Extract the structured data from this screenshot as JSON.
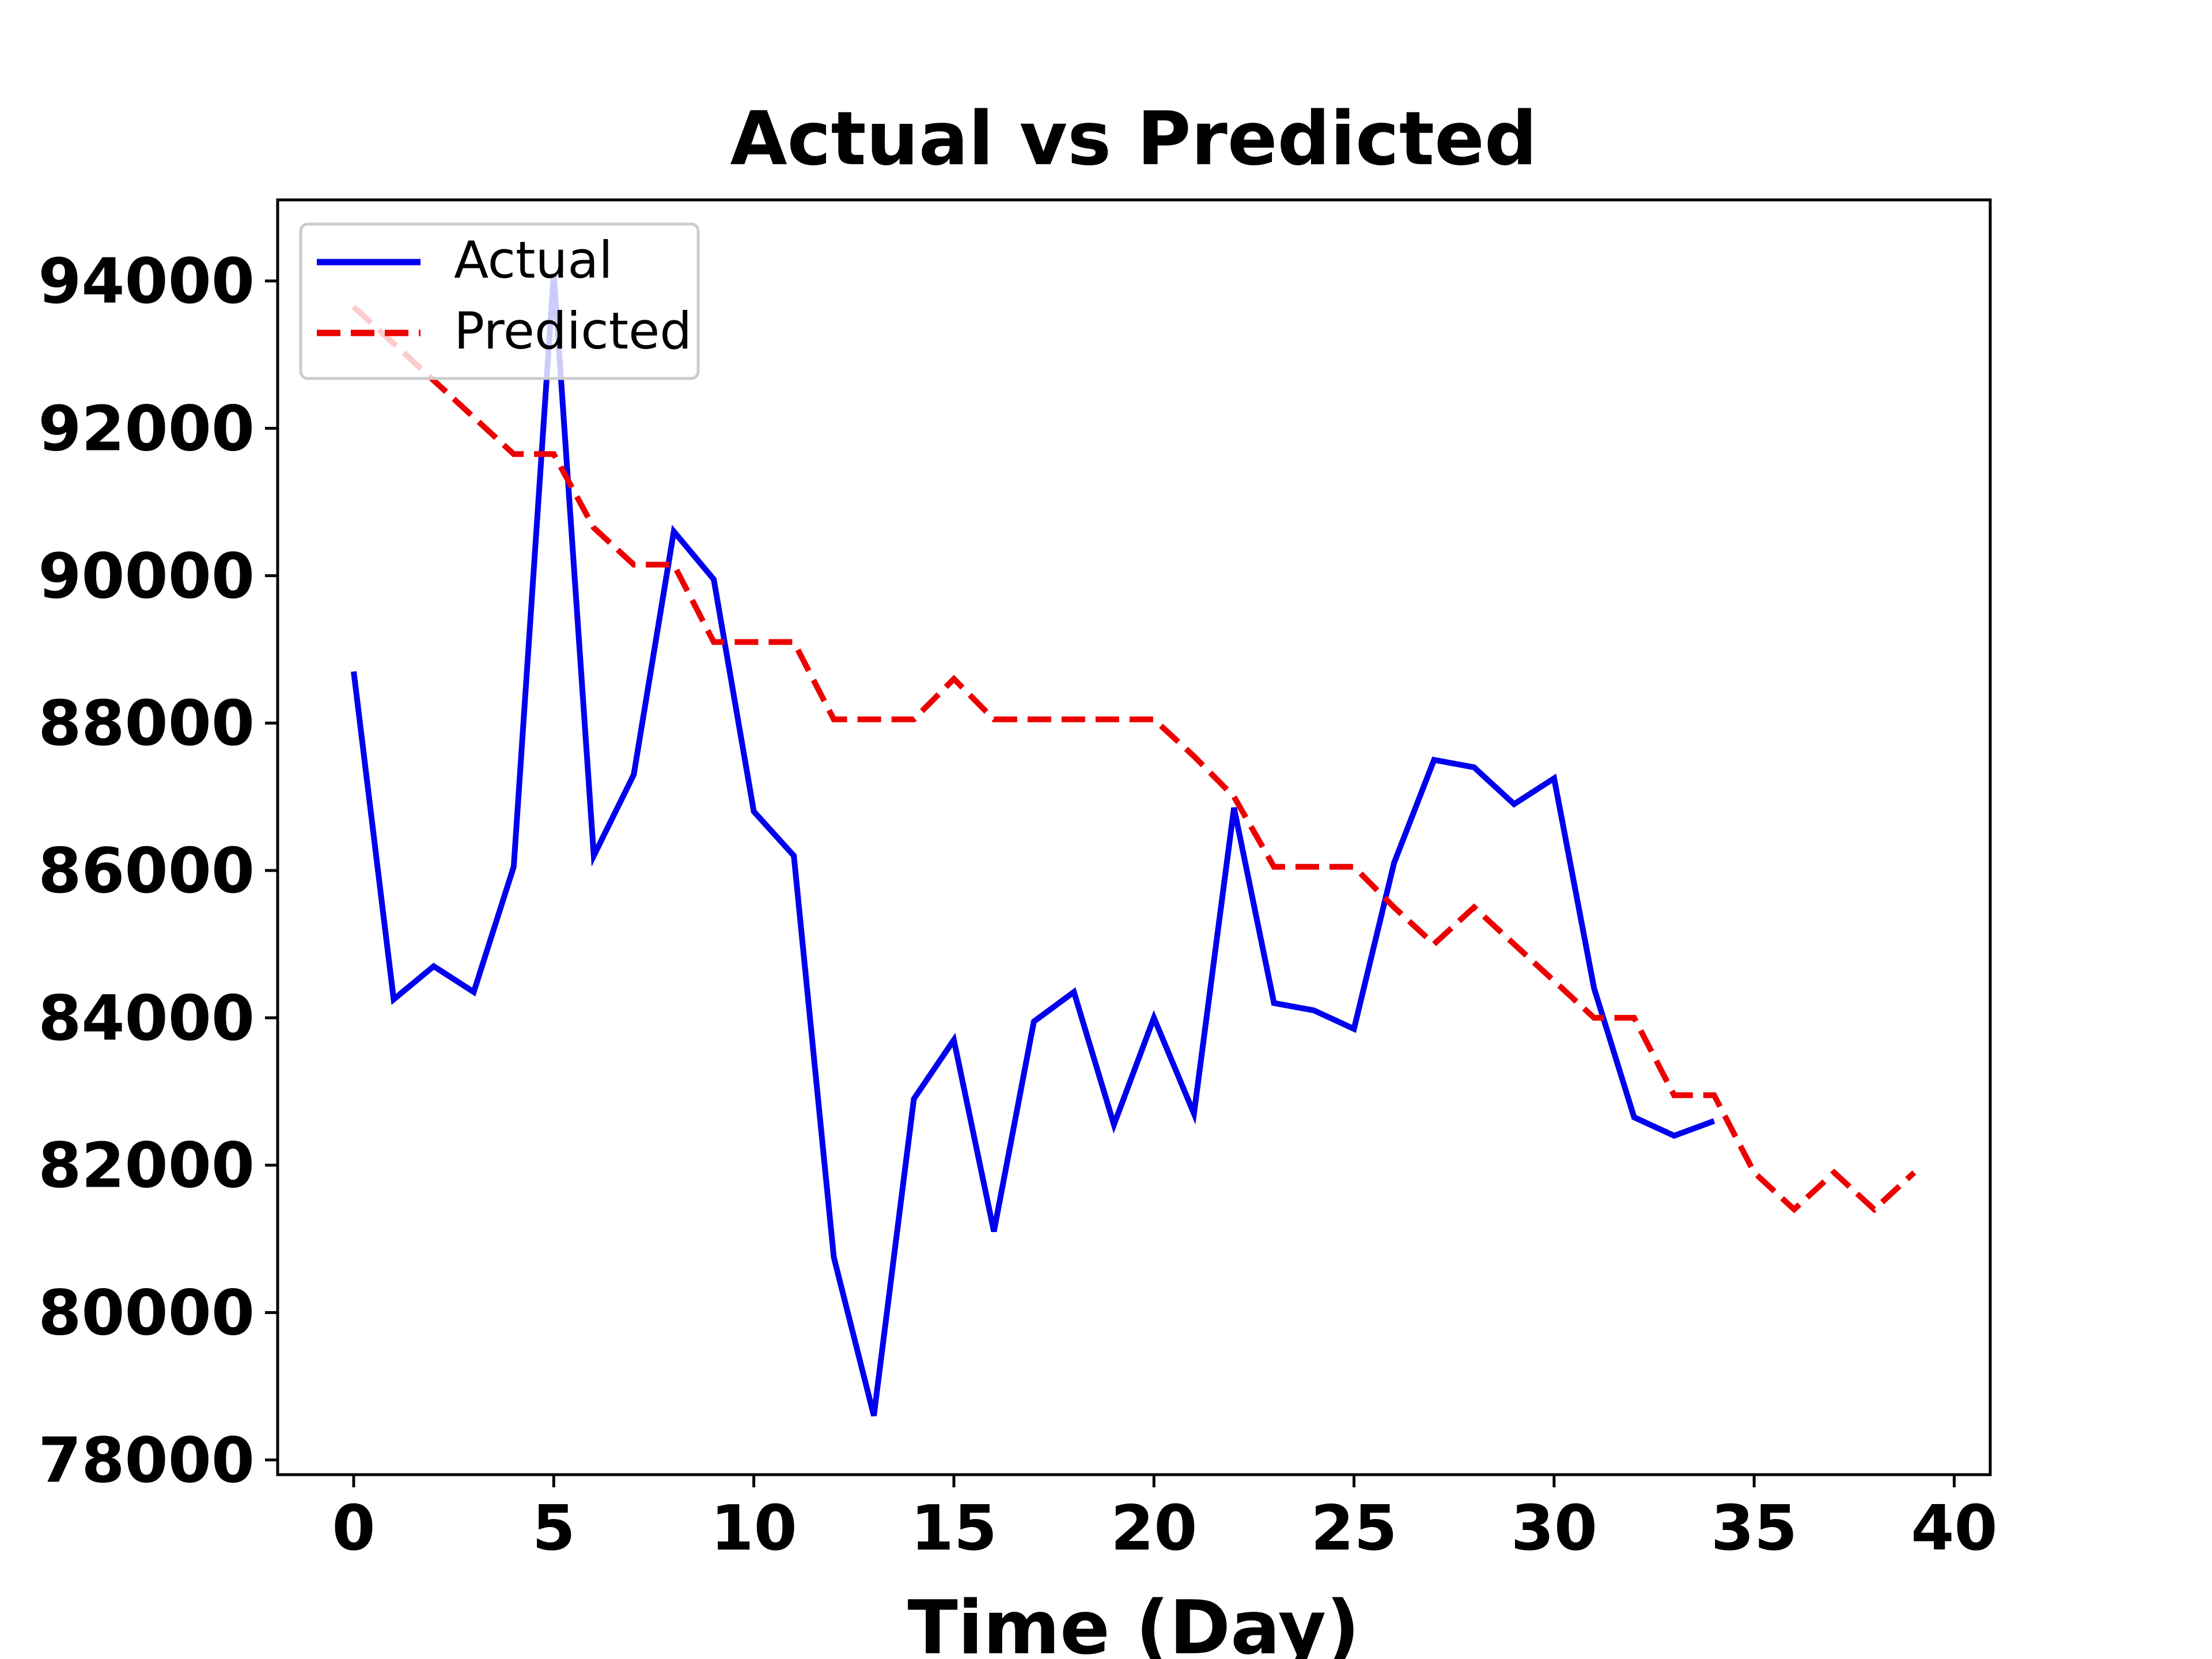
{
  "chart_data": {
    "type": "line",
    "title": "Actual vs Predicted",
    "xlabel": "Time (Day)",
    "ylabel": "",
    "xlim": [
      -1.9,
      40.9
    ],
    "ylim": [
      77800,
      95100
    ],
    "xticks": [
      0,
      5,
      10,
      15,
      20,
      25,
      30,
      35,
      40
    ],
    "yticks": [
      78000,
      80000,
      82000,
      84000,
      86000,
      88000,
      90000,
      92000,
      94000
    ],
    "xtick_labels": [
      "0",
      "5",
      "10",
      "15",
      "20",
      "25",
      "30",
      "35",
      "40"
    ],
    "ytick_labels": [
      "78000",
      "80000",
      "82000",
      "84000",
      "86000",
      "88000",
      "90000",
      "92000",
      "94000"
    ],
    "grid": false,
    "legend_position": "upper left",
    "series": [
      {
        "name": "Actual",
        "color": "#0000ee",
        "style": "solid",
        "x": [
          0,
          1,
          2,
          3,
          4,
          5,
          6,
          7,
          8,
          9,
          10,
          11,
          12,
          13,
          14,
          15,
          16,
          17,
          18,
          19,
          20,
          21,
          22,
          23,
          24,
          25,
          26,
          27,
          28,
          29,
          30,
          31,
          32,
          33,
          34
        ],
        "values": [
          88700,
          84250,
          84700,
          84350,
          86050,
          94100,
          86200,
          87300,
          90600,
          89950,
          86800,
          86200,
          80750,
          78600,
          82900,
          83700,
          81100,
          83950,
          84350,
          82550,
          84000,
          82700,
          86850,
          84200,
          84100,
          83850,
          86100,
          87500,
          87400,
          86900,
          87250,
          84400,
          82650,
          82400,
          82600
        ]
      },
      {
        "name": "Predicted",
        "color": "#ee0000",
        "style": "dashed",
        "x": [
          0,
          1,
          2,
          3,
          4,
          5,
          6,
          7,
          8,
          9,
          10,
          11,
          12,
          13,
          14,
          15,
          16,
          17,
          18,
          19,
          20,
          21,
          22,
          23,
          24,
          25,
          26,
          27,
          28,
          29,
          30,
          31,
          32,
          33,
          34,
          35,
          36,
          37,
          38,
          39
        ],
        "values": [
          93650,
          93150,
          92650,
          92150,
          91650,
          91650,
          90650,
          90150,
          90150,
          89100,
          89100,
          89100,
          88050,
          88050,
          88050,
          88600,
          88050,
          88050,
          88050,
          88050,
          88050,
          87550,
          87000,
          86050,
          86050,
          86050,
          85500,
          85000,
          85500,
          85000,
          84500,
          84000,
          84000,
          82950,
          82950,
          81900,
          81400,
          81900,
          81400,
          81900
        ]
      }
    ]
  }
}
